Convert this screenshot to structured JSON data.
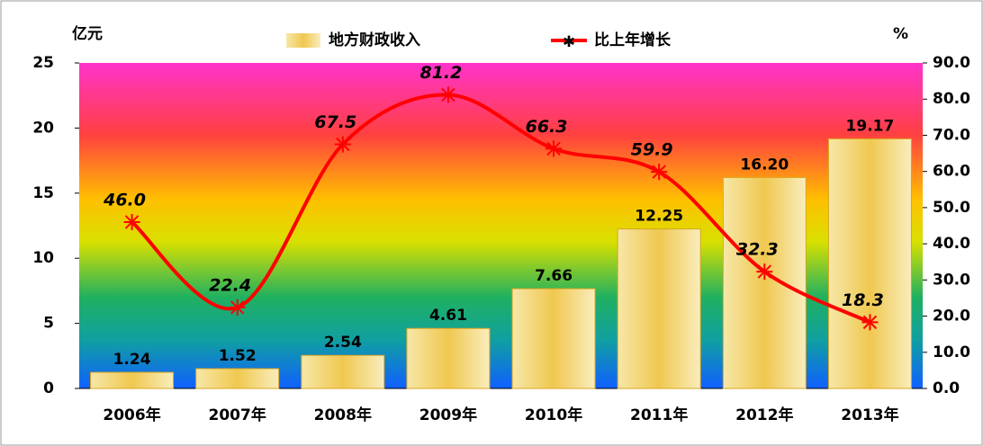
{
  "chart_data": {
    "type": "bar-line",
    "y_label": "亿元",
    "y2_label": "%",
    "categories": [
      "2006年",
      "2007年",
      "2008年",
      "2009年",
      "2010年",
      "2011年",
      "2012年",
      "2013年"
    ],
    "series": [
      {
        "name": "地方财政收入",
        "type": "bar",
        "color": "#f0c850",
        "values": [
          1.24,
          1.52,
          2.54,
          4.61,
          7.66,
          12.25,
          16.2,
          19.17
        ],
        "value_labels": [
          "1.24",
          "1.52",
          "2.54",
          "4.61",
          "7.66",
          "12.25",
          "16.20",
          "19.17"
        ]
      },
      {
        "name": "比上年增长",
        "type": "line",
        "axis": "y2",
        "color": "#ff0000",
        "values": [
          46.0,
          22.4,
          67.5,
          81.2,
          66.3,
          59.9,
          32.3,
          18.3
        ],
        "value_labels": [
          "46.0",
          "22.4",
          "67.5",
          "81.2",
          "66.3",
          "59.9",
          "32.3",
          "18.3"
        ]
      }
    ],
    "ylim": [
      0,
      25
    ],
    "yticks": [
      0,
      5,
      10,
      15,
      20,
      25
    ],
    "y2lim": [
      0,
      90
    ],
    "y2ticks": [
      {
        "value": 0,
        "label": "0.0"
      },
      {
        "value": 10,
        "label": "10.0"
      },
      {
        "value": 20,
        "label": "20.0"
      },
      {
        "value": 30,
        "label": "30.0"
      },
      {
        "value": 40,
        "label": "40.0"
      },
      {
        "value": 50,
        "label": "50.0"
      },
      {
        "value": 60,
        "label": "60.0"
      },
      {
        "value": 70,
        "label": "70.0"
      },
      {
        "value": 80,
        "label": "80.0"
      },
      {
        "value": 90,
        "label": "90.0"
      }
    ]
  }
}
